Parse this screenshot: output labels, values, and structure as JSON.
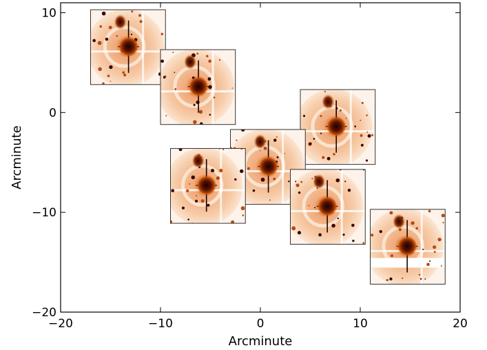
{
  "chart_data": {
    "type": "scatter",
    "title": "",
    "xlabel": "Arcminute",
    "ylabel": "Arcminute",
    "xlim": [
      -20,
      20
    ],
    "ylim": [
      -20,
      11
    ],
    "xticks": [
      -20,
      -10,
      0,
      10,
      20
    ],
    "yticks": [
      -20,
      -10,
      0,
      10
    ],
    "xtick_labels": [
      "−20",
      "−10",
      "0",
      "10",
      "20"
    ],
    "ytick_labels": [
      "−20",
      "−10",
      "0",
      "10"
    ],
    "grid": false,
    "legend": "none",
    "points": [
      {
        "x": -13.2,
        "y": 6.6
      },
      {
        "x": -6.2,
        "y": 2.6
      },
      {
        "x": 7.6,
        "y": -1.4
      },
      {
        "x": 0.8,
        "y": -5.4
      },
      {
        "x": -5.4,
        "y": -7.3
      },
      {
        "x": 6.7,
        "y": -9.4
      },
      {
        "x": 14.7,
        "y": -13.4
      }
    ],
    "frames": [
      {
        "x0": -17.0,
        "x1": -9.5,
        "y0": 2.8,
        "y1": 10.3
      },
      {
        "x0": -10.0,
        "x1": -2.5,
        "y0": -1.2,
        "y1": 6.3
      },
      {
        "x0": 4.0,
        "x1": 11.5,
        "y0": -5.2,
        "y1": 2.3
      },
      {
        "x0": -3.0,
        "x1": 4.5,
        "y0": -9.2,
        "y1": -1.7
      },
      {
        "x0": -9.0,
        "x1": -1.5,
        "y0": -11.1,
        "y1": -3.6
      },
      {
        "x0": 3.0,
        "x1": 10.5,
        "y0": -13.2,
        "y1": -5.7
      },
      {
        "x0": 11.0,
        "x1": 18.5,
        "y0": -17.2,
        "y1": -9.7
      }
    ],
    "colors": {
      "halo_outer": "#f5c9a2",
      "halo_mid": "#eea878",
      "star_core": "#2a0600",
      "star_mid": "#a83500",
      "frame": "#333333"
    }
  }
}
